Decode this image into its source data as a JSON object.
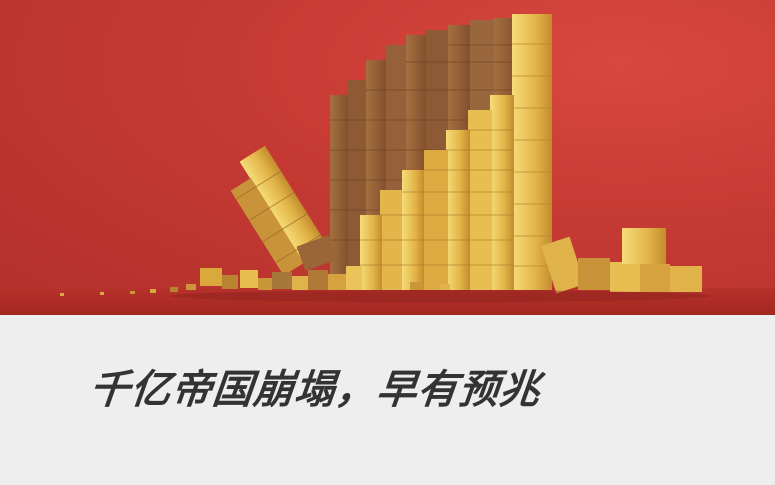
{
  "image": {
    "subject": "collapsing-gold-blocks",
    "colors": {
      "backdrop": "#c53a33",
      "floor": "#a82a25",
      "gold_light": "#f3d46a",
      "gold_mid": "#d9a93c",
      "gold_dark": "#9a6a23",
      "shadow_block": "#8d5a3a",
      "caption_bg": "#eeeeee",
      "headline_text": "#333333"
    }
  },
  "caption": {
    "headline": "千亿帝国崩塌，早有预兆"
  }
}
